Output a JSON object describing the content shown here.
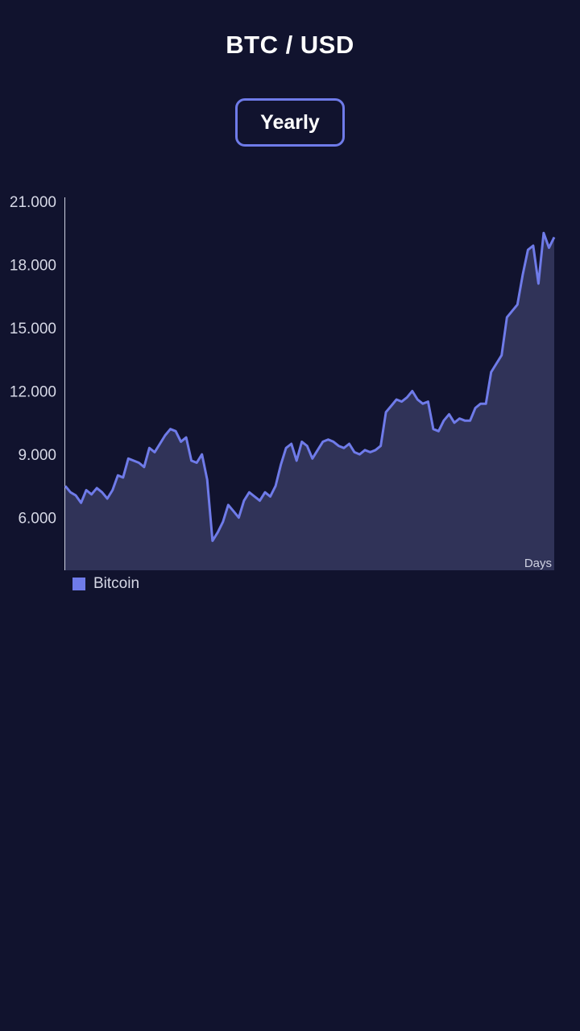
{
  "header": {
    "title": "BTC / USD"
  },
  "period_button": {
    "label": "Yearly"
  },
  "colors": {
    "background": "#11132e",
    "line": "#6f7be9",
    "area": "#303358"
  },
  "chart_data": {
    "type": "area",
    "title": "BTC / USD",
    "xlabel": "Days",
    "ylabel": "",
    "ylim": [
      3500,
      21000
    ],
    "y_ticks": [
      6000,
      9000,
      12000,
      15000,
      18000,
      21000
    ],
    "y_tick_labels": [
      "6.000",
      "9.000",
      "12.000",
      "15.000",
      "18.000",
      "21.000"
    ],
    "grid": false,
    "legend": "bottom-left",
    "series": [
      {
        "name": "Bitcoin",
        "values": [
          7500,
          7200,
          7050,
          6700,
          7300,
          7100,
          7400,
          7200,
          6900,
          7300,
          8000,
          7900,
          8800,
          8700,
          8600,
          8400,
          9300,
          9100,
          9500,
          9900,
          10200,
          10100,
          9600,
          9800,
          8700,
          8600,
          9000,
          7800,
          4900,
          5300,
          5800,
          6600,
          6300,
          6000,
          6800,
          7200,
          7000,
          6800,
          7200,
          7000,
          7500,
          8500,
          9300,
          9500,
          8700,
          9600,
          9400,
          8800,
          9200,
          9600,
          9700,
          9600,
          9400,
          9300,
          9500,
          9100,
          9000,
          9200,
          9100,
          9200,
          9400,
          11000,
          11300,
          11600,
          11500,
          11700,
          12000,
          11600,
          11400,
          11500,
          10200,
          10100,
          10600,
          10900,
          10500,
          10700,
          10600,
          10600,
          11200,
          11400,
          11400,
          12900,
          13300,
          13700,
          15500,
          15800,
          16100,
          17500,
          18700,
          18900,
          17100,
          19500,
          18800,
          19300
        ]
      }
    ]
  }
}
